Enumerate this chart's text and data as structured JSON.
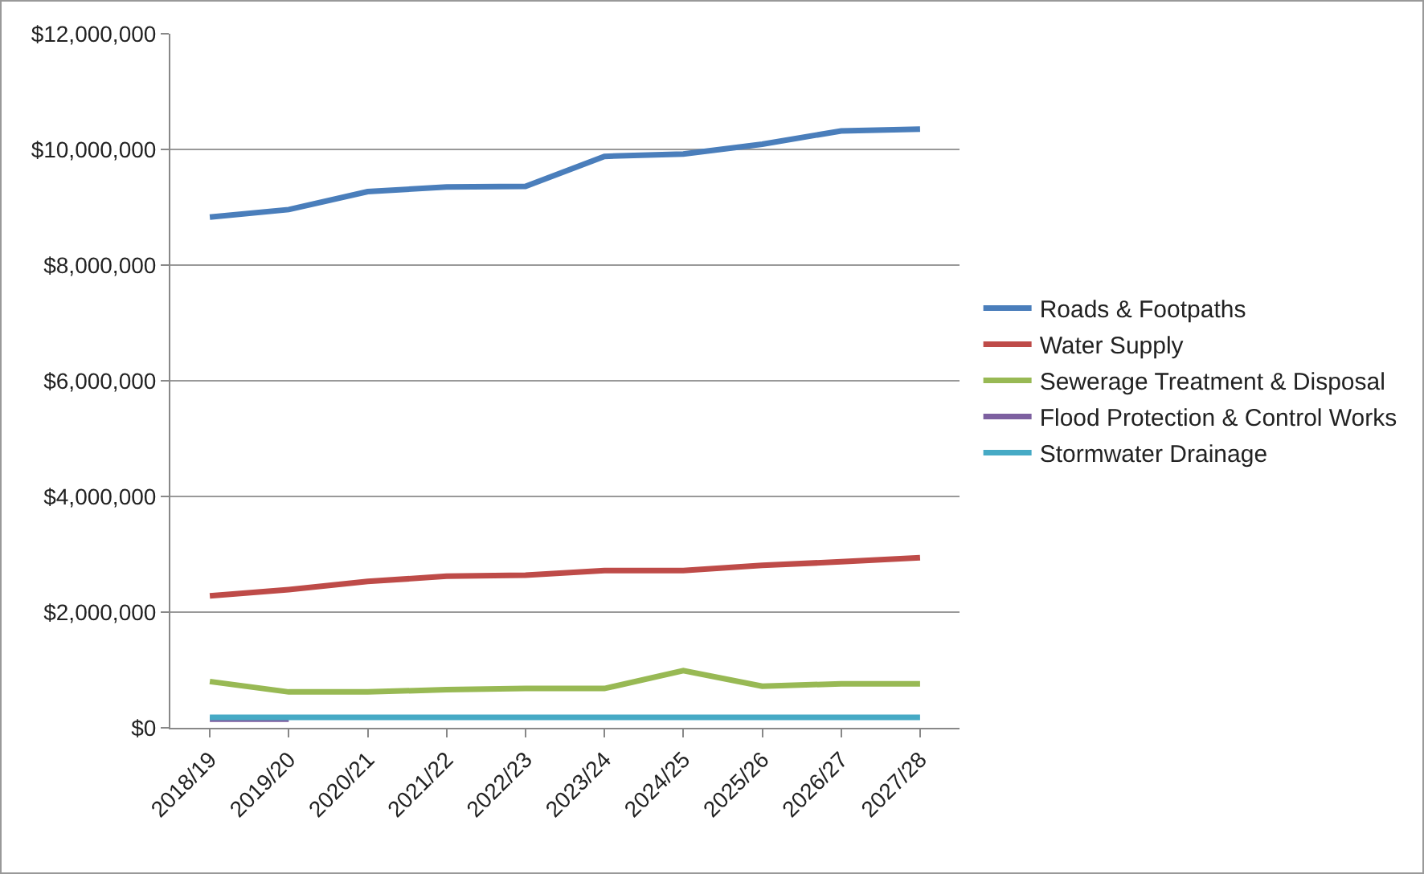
{
  "chart_data": {
    "type": "line",
    "categories": [
      "2018/19",
      "2019/20",
      "2020/21",
      "2021/22",
      "2022/23",
      "2023/24",
      "2024/25",
      "2025/26",
      "2026/27",
      "2027/28"
    ],
    "series": [
      {
        "name": "Roads & Footpaths",
        "color": "#4a7ebb",
        "values": [
          8830000,
          8960000,
          9270000,
          9350000,
          9360000,
          9880000,
          9920000,
          10090000,
          10320000,
          10350000
        ]
      },
      {
        "name": "Water Supply",
        "color": "#be4b48",
        "values": [
          2280000,
          2390000,
          2530000,
          2620000,
          2640000,
          2720000,
          2720000,
          2810000,
          2870000,
          2940000
        ]
      },
      {
        "name": "Sewerage Treatment & Disposal",
        "color": "#98b954",
        "values": [
          800000,
          620000,
          620000,
          660000,
          680000,
          680000,
          990000,
          720000,
          760000,
          760000
        ]
      },
      {
        "name": "Flood Protection & Control Works",
        "color": "#7d60a0",
        "values": [
          150000,
          150000,
          null,
          null,
          null,
          null,
          null,
          null,
          null,
          null
        ]
      },
      {
        "name": "Stormwater Drainage",
        "color": "#46aac5",
        "values": [
          180000,
          180000,
          180000,
          180000,
          180000,
          180000,
          180000,
          180000,
          180000,
          180000
        ]
      }
    ],
    "ylim": [
      0,
      12000000
    ],
    "yticks": [
      {
        "value": 0,
        "label": "$0"
      },
      {
        "value": 2000000,
        "label": "$2,000,000"
      },
      {
        "value": 4000000,
        "label": "$4,000,000"
      },
      {
        "value": 6000000,
        "label": "$6,000,000"
      },
      {
        "value": 8000000,
        "label": "$8,000,000"
      },
      {
        "value": 10000000,
        "label": "$10,000,000"
      },
      {
        "value": 12000000,
        "label": "$12,000,000"
      }
    ],
    "grid": "y",
    "legend": "right",
    "marker": "none",
    "line_style": "solid"
  }
}
